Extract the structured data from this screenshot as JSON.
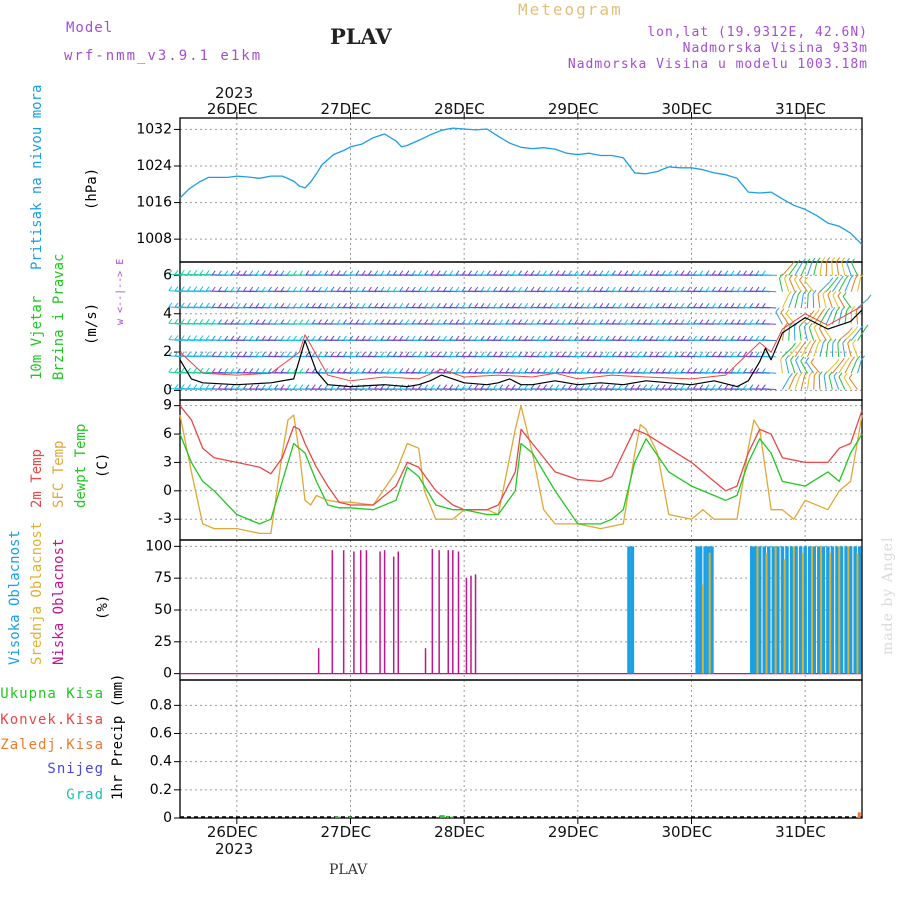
{
  "header": {
    "model_label": "Model",
    "model_name": "wrf-nmm_v3.9.1 e1km",
    "title": "PLAV",
    "meteogram": "Meteogram",
    "coords": "lon,lat (19.9312E, 42.6N)",
    "altitude": "Nadmorska Visina 933m",
    "model_altitude": "Nadmorska Visina u modelu 1003.18m",
    "year": "2023",
    "footer_station": "PLAV",
    "credit": "made by Angel"
  },
  "colors": {
    "pressure": "#1aa0e6",
    "temp2m": "#e84848",
    "sfc_temp": "#e0a838",
    "dewpt": "#22c822",
    "cloud_high": "#1aa0e6",
    "cloud_mid": "#e0b030",
    "cloud_low": "#c0158e",
    "wind_speed": "#000000",
    "gust": "#e84848",
    "frame": "#000000",
    "grid": "#9a9a9a"
  },
  "chart_data": [
    {
      "type": "line",
      "panel": "pressure",
      "ylabel": [
        "Pritisak na nivou mora",
        "(hPa)"
      ],
      "x_ticks": [
        "26DEC",
        "27DEC",
        "28DEC",
        "29DEC",
        "30DEC",
        "31DEC"
      ],
      "y_ticks": [
        1008,
        1016,
        1024,
        1032
      ],
      "ylim": [
        1003,
        1034.5
      ],
      "x_range_days": [
        25.5,
        31.5
      ],
      "series": [
        {
          "x": [
            25.5,
            25.58,
            25.67,
            25.75,
            25.83,
            25.92,
            26.0,
            26.1,
            26.2,
            26.3,
            26.4,
            26.5,
            26.55,
            26.6,
            26.65,
            26.7,
            26.75,
            26.85,
            26.95,
            27.0,
            27.1,
            27.2,
            27.3,
            27.4,
            27.45,
            27.5,
            27.6,
            27.7,
            27.8,
            27.9,
            28.0,
            28.1,
            28.2,
            28.3,
            28.4,
            28.5,
            28.6,
            28.7,
            28.8,
            28.9,
            29.0,
            29.1,
            29.2,
            29.3,
            29.4,
            29.5,
            29.6,
            29.7,
            29.8,
            29.9,
            30.0,
            30.1,
            30.2,
            30.3,
            30.4,
            30.5,
            30.6,
            30.7,
            30.8,
            30.9,
            31.0,
            31.1,
            31.2,
            31.3,
            31.4,
            31.5
          ],
          "y": [
            1017,
            1019,
            1020.5,
            1021.5,
            1021.5,
            1021.5,
            1021.8,
            1021.6,
            1021.3,
            1021.8,
            1021.8,
            1020.7,
            1019.6,
            1019.2,
            1020.5,
            1022.3,
            1024.3,
            1026.5,
            1027.5,
            1028.2,
            1028.8,
            1030.2,
            1031,
            1029.5,
            1028.2,
            1028.5,
            1029.6,
            1030.8,
            1031.8,
            1032.3,
            1032.1,
            1031.9,
            1032.1,
            1030.5,
            1029,
            1028.1,
            1027.8,
            1028,
            1027.7,
            1026.8,
            1026.5,
            1026.8,
            1026.3,
            1026.3,
            1025.8,
            1022.5,
            1022.3,
            1022.8,
            1023.8,
            1023.6,
            1023.6,
            1023.2,
            1022.5,
            1022.1,
            1021.3,
            1018.3,
            1018.1,
            1018.3,
            1016.8,
            1015.4,
            1014.5,
            1013.2,
            1011.5,
            1010.8,
            1009.3,
            1006.8
          ]
        }
      ]
    },
    {
      "type": "line",
      "panel": "wind",
      "ylabel": [
        "10m Vjetar",
        "Brzina i Pravac",
        "(m/s)"
      ],
      "legend_glyph": "w <--|--> E",
      "y_ticks": [
        0,
        2,
        4,
        6
      ],
      "ylim": [
        -0.5,
        6.7
      ],
      "series": [
        {
          "name": "speed",
          "x": [
            25.5,
            25.6,
            25.7,
            26.0,
            26.3,
            26.5,
            26.55,
            26.6,
            26.7,
            26.8,
            27.0,
            27.3,
            27.5,
            27.6,
            27.7,
            27.8,
            28.0,
            28.2,
            28.3,
            28.4,
            28.5,
            28.6,
            28.8,
            29.0,
            29.2,
            29.4,
            29.6,
            29.8,
            30.0,
            30.2,
            30.4,
            30.5,
            30.6,
            30.65,
            30.7,
            30.8,
            31.0,
            31.2,
            31.4,
            31.5
          ],
          "y": [
            1.6,
            0.6,
            0.4,
            0.3,
            0.4,
            0.6,
            1.6,
            2.6,
            1.0,
            0.3,
            0.2,
            0.3,
            0.2,
            0.3,
            0.5,
            0.8,
            0.4,
            0.3,
            0.4,
            0.6,
            0.3,
            0.3,
            0.5,
            0.3,
            0.4,
            0.3,
            0.5,
            0.4,
            0.3,
            0.5,
            0.2,
            0.5,
            1.5,
            2.2,
            1.6,
            3.0,
            3.8,
            3.2,
            3.6,
            4.2
          ]
        },
        {
          "name": "gust",
          "x": [
            25.5,
            25.7,
            26.0,
            26.3,
            26.55,
            26.6,
            26.8,
            27.0,
            27.3,
            27.6,
            27.8,
            28.0,
            28.3,
            28.6,
            28.8,
            29.0,
            29.3,
            29.6,
            30.0,
            30.3,
            30.6,
            30.7,
            30.8,
            31.0,
            31.2,
            31.5
          ],
          "y": [
            2.0,
            0.9,
            0.8,
            0.9,
            2.0,
            2.9,
            0.8,
            0.5,
            0.7,
            0.6,
            1.1,
            0.7,
            0.8,
            0.7,
            0.9,
            0.6,
            0.8,
            0.7,
            0.6,
            0.8,
            2.5,
            2.0,
            3.2,
            4.0,
            3.4,
            4.4
          ]
        }
      ]
    },
    {
      "type": "line",
      "panel": "temperature",
      "ylabel": [
        "2m Temp",
        "SFC Temp",
        "dewpt Temp",
        "(C)"
      ],
      "y_ticks": [
        -3,
        0,
        3,
        6,
        9
      ],
      "ylim": [
        -5.2,
        9.6
      ],
      "series": [
        {
          "name": "2m Temp",
          "x": [
            25.5,
            25.6,
            25.7,
            25.8,
            26.0,
            26.2,
            26.3,
            26.4,
            26.5,
            26.55,
            26.6,
            26.7,
            26.8,
            26.9,
            27.0,
            27.2,
            27.4,
            27.5,
            27.6,
            27.75,
            27.9,
            28.0,
            28.2,
            28.3,
            28.45,
            28.5,
            28.6,
            28.8,
            29.0,
            29.2,
            29.3,
            29.4,
            29.5,
            29.6,
            29.8,
            30.0,
            30.2,
            30.3,
            30.4,
            30.5,
            30.6,
            30.7,
            30.8,
            31.0,
            31.2,
            31.3,
            31.4,
            31.5
          ],
          "y": [
            9,
            7.5,
            4.5,
            3.5,
            3,
            2.5,
            1.8,
            3.5,
            6.8,
            6.5,
            5,
            2.5,
            0.5,
            -1.2,
            -1.5,
            -1.5,
            0.5,
            3,
            2.5,
            0,
            -1.5,
            -2,
            -2,
            -1.5,
            2,
            6.5,
            5,
            2,
            1.2,
            1,
            1.5,
            4,
            6.5,
            6,
            4.5,
            3,
            1,
            0,
            0.5,
            4,
            6.5,
            6,
            3.5,
            3,
            3,
            4.5,
            5,
            8.5
          ]
        },
        {
          "name": "SFC Temp",
          "x": [
            25.5,
            25.6,
            25.7,
            25.8,
            26.0,
            26.2,
            26.3,
            26.4,
            26.45,
            26.5,
            26.55,
            26.6,
            26.65,
            26.7,
            26.8,
            26.9,
            27.0,
            27.2,
            27.4,
            27.5,
            27.6,
            27.65,
            27.75,
            27.9,
            28.0,
            28.2,
            28.3,
            28.45,
            28.5,
            28.6,
            28.7,
            28.8,
            29.0,
            29.2,
            29.4,
            29.5,
            29.55,
            29.6,
            29.7,
            29.8,
            30.0,
            30.1,
            30.2,
            30.3,
            30.4,
            30.5,
            30.55,
            30.6,
            30.7,
            30.8,
            30.9,
            31.0,
            31.2,
            31.3,
            31.4,
            31.5
          ],
          "y": [
            8,
            2,
            -3.5,
            -4,
            -4,
            -4.5,
            -4.5,
            4,
            7.5,
            8,
            4,
            -1,
            -1.5,
            -0.5,
            -1,
            -1.2,
            -1.2,
            -1.5,
            2,
            5,
            4.5,
            0,
            -3,
            -3,
            -2,
            -2,
            -2.5,
            6.5,
            9,
            4,
            -2,
            -3.5,
            -3.5,
            -4,
            -3.5,
            4,
            7,
            6.5,
            4,
            -2.5,
            -3,
            -2,
            -3,
            -3,
            -3,
            4.5,
            7.5,
            6.5,
            -2,
            -2,
            -3,
            -1,
            -2,
            0,
            1,
            8
          ]
        },
        {
          "name": "dewpt Temp",
          "x": [
            25.5,
            25.6,
            25.7,
            25.8,
            26.0,
            26.2,
            26.3,
            26.4,
            26.5,
            26.6,
            26.7,
            26.8,
            26.9,
            27.0,
            27.2,
            27.4,
            27.5,
            27.6,
            27.75,
            27.9,
            28.0,
            28.2,
            28.3,
            28.45,
            28.5,
            28.6,
            28.8,
            29.0,
            29.2,
            29.3,
            29.4,
            29.5,
            29.6,
            29.8,
            30.0,
            30.2,
            30.3,
            30.4,
            30.5,
            30.6,
            30.7,
            30.8,
            31.0,
            31.2,
            31.3,
            31.4,
            31.5
          ],
          "y": [
            6,
            3,
            1,
            0,
            -2.5,
            -3.5,
            -3,
            1,
            5,
            4,
            1,
            -1.5,
            -1.8,
            -1.8,
            -2,
            -1,
            2.5,
            1.5,
            -1.5,
            -2,
            -2,
            -2.5,
            -2.5,
            0,
            5,
            4,
            0,
            -3.5,
            -3.5,
            -3,
            -2,
            3,
            5.5,
            2,
            0.5,
            -0.5,
            -1,
            -0.5,
            3,
            5.5,
            4,
            1,
            0.5,
            2,
            1,
            4,
            6
          ]
        }
      ]
    },
    {
      "type": "bar",
      "panel": "clouds",
      "ylabel": [
        "Visoka Oblacnost",
        "Srednja Oblacnost",
        "Niska Oblacnost",
        "(%)"
      ],
      "y_ticks": [
        0,
        25,
        50,
        75,
        100
      ],
      "ylim": [
        -5,
        105
      ],
      "series": [
        {
          "name": "Niska Oblacnost",
          "x": [
            26.72,
            26.84,
            26.94,
            27.03,
            27.09,
            27.14,
            27.26,
            27.3,
            27.38,
            27.42,
            27.66,
            27.72,
            27.78,
            27.86,
            27.9,
            27.95,
            28.02,
            28.06,
            28.1
          ],
          "y": [
            20,
            97,
            97,
            96,
            97,
            97,
            96,
            97,
            92,
            96,
            20,
            98,
            97,
            97,
            97,
            96,
            75,
            77,
            78
          ]
        },
        {
          "name": "Visoka Oblacnost",
          "x": [
            29.45,
            29.48,
            30.05,
            30.08,
            30.12,
            30.15,
            30.18,
            30.53,
            30.56,
            30.6,
            30.64,
            30.68,
            30.72,
            30.76,
            30.8,
            30.84,
            30.88,
            30.92,
            30.96,
            31.0,
            31.04,
            31.08,
            31.12,
            31.16,
            31.2,
            31.24,
            31.28,
            31.32,
            31.36,
            31.4,
            31.44,
            31.48
          ],
          "y": [
            100,
            100,
            100,
            100,
            100,
            100,
            100,
            100,
            100,
            100,
            100,
            100,
            100,
            100,
            100,
            100,
            100,
            100,
            100,
            100,
            100,
            100,
            100,
            100,
            100,
            100,
            100,
            100,
            100,
            100,
            100,
            100
          ]
        },
        {
          "name": "Srednja Oblacnost",
          "x": [
            30.1,
            30.16,
            30.58,
            30.66,
            30.74,
            30.82,
            30.9,
            30.98,
            31.06,
            31.14,
            31.22,
            31.3,
            31.38,
            31.46
          ],
          "y": [
            70,
            95,
            100,
            95,
            100,
            90,
            100,
            95,
            100,
            100,
            95,
            100,
            100,
            95
          ]
        }
      ]
    },
    {
      "type": "bar",
      "panel": "precip",
      "ylabel": [
        "1hr Precip (mm)"
      ],
      "legend_left": [
        "Ukupna Kisa",
        "Konvek.Kisa",
        "Zaledj.Kisa",
        "Snijeg",
        "Grad"
      ],
      "y_ticks": [
        0,
        0.2,
        0.4,
        0.6,
        0.8
      ],
      "ylim": [
        0,
        0.98
      ],
      "series": [
        {
          "name": "Ukupna Kisa",
          "x": [
            26.88,
            26.9,
            27.0,
            27.8,
            27.82,
            27.86,
            27.9
          ],
          "y": [
            0.01,
            0.01,
            0.01,
            0.02,
            0.02,
            0.015,
            0.01
          ]
        },
        {
          "name": "Zaledj.Kisa",
          "x": [
            31.48
          ],
          "y": [
            0.04
          ]
        }
      ]
    }
  ]
}
